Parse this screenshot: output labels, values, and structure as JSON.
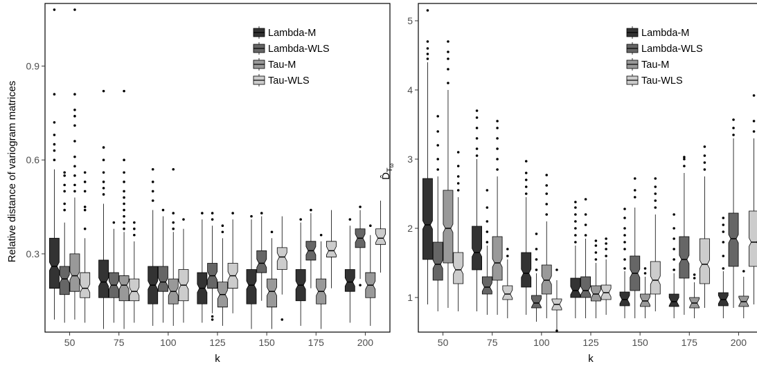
{
  "colors": {
    "Lambda-M": "#333333",
    "Lambda-WLS": "#666666",
    "Tau-M": "#999999",
    "Tau-WLS": "#cccccc",
    "outline": "#000000",
    "outlier": "#000000"
  },
  "chart_data": [
    {
      "type": "boxplot",
      "notched": true,
      "categories": [
        "50",
        "75",
        "100",
        "125",
        "150",
        "175",
        "200"
      ],
      "xlabel": "k",
      "ylabel": "Relative distance of variogram matrices",
      "ylim": [
        0.05,
        1.1
      ],
      "yticks": [
        0.3,
        0.6,
        0.9
      ],
      "yticklabels": [
        "0.3",
        "0.6",
        "0.9"
      ],
      "legend": {
        "position": "top-right",
        "entries": [
          "Lambda-M",
          "Lambda-WLS",
          "Tau-M",
          "Tau-WLS"
        ]
      },
      "series": [
        {
          "name": "Lambda-M",
          "boxes": [
            {
              "lw": 0.09,
              "q1": 0.19,
              "med": 0.26,
              "q3": 0.35,
              "uw": 0.57,
              "out": [
                0.6,
                0.63,
                0.65,
                0.68,
                0.72,
                0.81,
                1.08
              ]
            },
            {
              "lw": 0.06,
              "q1": 0.16,
              "med": 0.21,
              "q3": 0.28,
              "uw": 0.46,
              "out": [
                0.49,
                0.51,
                0.53,
                0.56,
                0.6,
                0.64,
                0.82
              ]
            },
            {
              "lw": 0.07,
              "q1": 0.14,
              "med": 0.2,
              "q3": 0.26,
              "uw": 0.44,
              "out": [
                0.47,
                0.5,
                0.53,
                0.57
              ]
            },
            {
              "lw": 0.08,
              "q1": 0.14,
              "med": 0.19,
              "q3": 0.24,
              "uw": 0.41,
              "out": [
                0.43
              ]
            },
            {
              "lw": 0.06,
              "q1": 0.14,
              "med": 0.2,
              "q3": 0.25,
              "uw": 0.41,
              "out": [
                0.42
              ]
            },
            {
              "lw": 0.07,
              "q1": 0.15,
              "med": 0.2,
              "q3": 0.25,
              "uw": 0.4,
              "out": [
                0.41
              ]
            },
            {
              "lw": 0.08,
              "q1": 0.18,
              "med": 0.21,
              "q3": 0.25,
              "uw": 0.39,
              "out": [
                0.41
              ]
            }
          ]
        },
        {
          "name": "Lambda-WLS",
          "boxes": [
            {
              "lw": 0.08,
              "q1": 0.17,
              "med": 0.22,
              "q3": 0.26,
              "uw": 0.4,
              "out": [
                0.44,
                0.46,
                0.5,
                0.52,
                0.55,
                0.56
              ]
            },
            {
              "lw": 0.08,
              "q1": 0.16,
              "med": 0.2,
              "q3": 0.24,
              "uw": 0.38,
              "out": [
                0.4
              ]
            },
            {
              "lw": 0.08,
              "q1": 0.18,
              "med": 0.21,
              "q3": 0.26,
              "uw": 0.42,
              "out": [
                0.44
              ]
            },
            {
              "lw": 0.11,
              "q1": 0.19,
              "med": 0.23,
              "q3": 0.27,
              "uw": 0.39,
              "out": [
                0.09,
                0.1,
                0.41,
                0.43
              ]
            },
            {
              "lw": 0.15,
              "q1": 0.24,
              "med": 0.27,
              "q3": 0.31,
              "uw": 0.42,
              "out": [
                0.43
              ]
            },
            {
              "lw": 0.19,
              "q1": 0.28,
              "med": 0.31,
              "q3": 0.34,
              "uw": 0.43,
              "out": [
                0.44
              ]
            },
            {
              "lw": 0.22,
              "q1": 0.32,
              "med": 0.35,
              "q3": 0.38,
              "uw": 0.44,
              "out": [
                0.2,
                0.45
              ]
            }
          ]
        },
        {
          "name": "Tau-M",
          "boxes": [
            {
              "lw": 0.09,
              "q1": 0.18,
              "med": 0.23,
              "q3": 0.3,
              "uw": 0.48,
              "out": [
                0.5,
                0.52,
                0.55,
                0.58,
                0.61,
                0.66,
                0.71,
                0.74,
                0.76,
                0.81,
                1.08
              ]
            },
            {
              "lw": 0.06,
              "q1": 0.15,
              "med": 0.2,
              "q3": 0.23,
              "uw": 0.37,
              "out": [
                0.38,
                0.4,
                0.42,
                0.44,
                0.46,
                0.48,
                0.5,
                0.53,
                0.56,
                0.6,
                0.82
              ]
            },
            {
              "lw": 0.07,
              "q1": 0.14,
              "med": 0.18,
              "q3": 0.22,
              "uw": 0.37,
              "out": [
                0.38,
                0.4,
                0.43,
                0.57
              ]
            },
            {
              "lw": 0.07,
              "q1": 0.13,
              "med": 0.17,
              "q3": 0.21,
              "uw": 0.35,
              "out": [
                0.37,
                0.39
              ]
            },
            {
              "lw": 0.06,
              "q1": 0.13,
              "med": 0.18,
              "q3": 0.22,
              "uw": 0.35,
              "out": [
                0.37
              ]
            },
            {
              "lw": 0.06,
              "q1": 0.14,
              "med": 0.18,
              "q3": 0.22,
              "uw": 0.34,
              "out": [
                0.36
              ]
            },
            {
              "lw": 0.07,
              "q1": 0.16,
              "med": 0.2,
              "q3": 0.24,
              "uw": 0.36,
              "out": [
                0.39
              ]
            }
          ]
        },
        {
          "name": "Tau-WLS",
          "boxes": [
            {
              "lw": 0.08,
              "q1": 0.16,
              "med": 0.19,
              "q3": 0.24,
              "uw": 0.35,
              "out": [
                0.38,
                0.44,
                0.45,
                0.5,
                0.53,
                0.56
              ]
            },
            {
              "lw": 0.08,
              "q1": 0.15,
              "med": 0.18,
              "q3": 0.22,
              "uw": 0.34,
              "out": [
                0.36,
                0.38,
                0.4
              ]
            },
            {
              "lw": 0.08,
              "q1": 0.15,
              "med": 0.2,
              "q3": 0.25,
              "uw": 0.38,
              "out": [
                0.41
              ]
            },
            {
              "lw": 0.11,
              "q1": 0.19,
              "med": 0.23,
              "q3": 0.27,
              "uw": 0.41,
              "out": [
                0.43
              ]
            },
            {
              "lw": 0.17,
              "q1": 0.25,
              "med": 0.29,
              "q3": 0.32,
              "uw": 0.42,
              "out": [
                0.09
              ]
            },
            {
              "lw": 0.19,
              "q1": 0.29,
              "med": 0.31,
              "q3": 0.34,
              "uw": 0.44,
              "out": []
            },
            {
              "lw": 0.24,
              "q1": 0.33,
              "med": 0.35,
              "q3": 0.38,
              "uw": 0.47,
              "out": []
            }
          ]
        }
      ]
    },
    {
      "type": "boxplot",
      "notched": true,
      "categories": [
        "50",
        "75",
        "100",
        "125",
        "150",
        "175",
        "200"
      ],
      "xlabel": "k",
      "ylabel": "D̂",
      "ylabel_subscript": "T",
      "ylabel_subsubscript": "ω",
      "ylim": [
        0.5,
        5.25
      ],
      "yticks": [
        1,
        2,
        3,
        4,
        5
      ],
      "yticklabels": [
        "1",
        "2",
        "3",
        "4",
        "5"
      ],
      "legend": {
        "position": "top-right",
        "entries": [
          "Lambda-M",
          "Lambda-WLS",
          "Tau-M",
          "Tau-WLS"
        ]
      },
      "series": [
        {
          "name": "Lambda-M",
          "boxes": [
            {
              "lw": 0.9,
              "q1": 1.55,
              "med": 2.05,
              "q3": 2.72,
              "uw": 4.4,
              "out": [
                4.45,
                4.52,
                4.6,
                4.7,
                5.15
              ]
            },
            {
              "lw": 0.8,
              "q1": 1.4,
              "med": 1.65,
              "q3": 2.03,
              "uw": 3.0,
              "out": [
                3.05,
                3.15,
                3.3,
                3.45,
                3.6,
                3.7
              ]
            },
            {
              "lw": 0.75,
              "q1": 1.15,
              "med": 1.35,
              "q3": 1.65,
              "uw": 2.45,
              "out": [
                2.5,
                2.6,
                2.7,
                2.8,
                2.97
              ]
            },
            {
              "lw": 0.7,
              "q1": 1.0,
              "med": 1.1,
              "q3": 1.28,
              "uw": 1.75,
              "out": [
                1.8,
                1.9,
                2.0,
                2.1,
                2.2,
                2.3,
                2.38
              ]
            },
            {
              "lw": 0.7,
              "q1": 0.88,
              "med": 0.97,
              "q3": 1.08,
              "uw": 1.38,
              "out": [
                1.42,
                1.55,
                1.7,
                1.8,
                1.9,
                2.0,
                2.15,
                2.28
              ]
            },
            {
              "lw": 0.7,
              "q1": 0.87,
              "med": 0.94,
              "q3": 1.05,
              "uw": 1.35,
              "out": [
                1.4,
                1.55,
                1.7,
                1.85,
                2.0,
                2.2
              ]
            },
            {
              "lw": 0.7,
              "q1": 0.88,
              "med": 0.97,
              "q3": 1.07,
              "uw": 1.38,
              "out": [
                1.42,
                1.6,
                1.8,
                1.95,
                2.05,
                2.15
              ]
            }
          ]
        },
        {
          "name": "Lambda-WLS",
          "boxes": [
            {
              "lw": 0.8,
              "q1": 1.25,
              "med": 1.48,
              "q3": 1.8,
              "uw": 2.75,
              "out": [
                2.85,
                3.0,
                3.2,
                3.4,
                3.62
              ]
            },
            {
              "lw": 0.75,
              "q1": 1.05,
              "med": 1.15,
              "q3": 1.3,
              "uw": 1.75,
              "out": [
                1.8,
                1.95,
                2.1,
                2.3,
                2.55
              ]
            },
            {
              "lw": 0.65,
              "q1": 0.85,
              "med": 0.92,
              "q3": 1.03,
              "uw": 1.35,
              "out": [
                1.4,
                1.55,
                1.7,
                1.92
              ]
            },
            {
              "lw": 0.7,
              "q1": 1.0,
              "med": 1.1,
              "q3": 1.3,
              "uw": 1.85,
              "out": [
                1.9,
                2.05,
                2.2,
                2.42
              ]
            },
            {
              "lw": 0.7,
              "q1": 1.1,
              "med": 1.35,
              "q3": 1.6,
              "uw": 2.3,
              "out": [
                2.45,
                2.55,
                2.72
              ]
            },
            {
              "lw": 0.75,
              "q1": 1.28,
              "med": 1.55,
              "q3": 1.88,
              "uw": 2.8,
              "out": [
                2.9,
                3.0,
                3.03
              ]
            },
            {
              "lw": 0.85,
              "q1": 1.45,
              "med": 1.85,
              "q3": 2.22,
              "uw": 3.3,
              "out": [
                3.35,
                3.45,
                3.57
              ]
            }
          ]
        },
        {
          "name": "Tau-M",
          "boxes": [
            {
              "lw": 0.85,
              "q1": 1.5,
              "med": 2.0,
              "q3": 2.55,
              "uw": 4.0,
              "out": [
                4.1,
                4.3,
                4.45,
                4.55,
                4.7
              ]
            },
            {
              "lw": 0.75,
              "q1": 1.25,
              "med": 1.5,
              "q3": 1.88,
              "uw": 2.75,
              "out": [
                2.85,
                3.0,
                3.15,
                3.3,
                3.45,
                3.55
              ]
            },
            {
              "lw": 0.7,
              "q1": 1.05,
              "med": 1.25,
              "q3": 1.47,
              "uw": 2.1,
              "out": [
                2.2,
                2.35,
                2.5,
                2.62,
                2.77
              ]
            },
            {
              "lw": 0.7,
              "q1": 0.95,
              "med": 1.05,
              "q3": 1.17,
              "uw": 1.5,
              "out": [
                1.55,
                1.65,
                1.75,
                1.82
              ]
            },
            {
              "lw": 0.7,
              "q1": 0.87,
              "med": 0.95,
              "q3": 1.05,
              "uw": 1.3,
              "out": [
                1.35,
                1.42
              ]
            },
            {
              "lw": 0.7,
              "q1": 0.85,
              "med": 0.92,
              "q3": 1.0,
              "uw": 1.22,
              "out": [
                1.28,
                1.33
              ]
            },
            {
              "lw": 0.7,
              "q1": 0.87,
              "med": 0.94,
              "q3": 1.02,
              "uw": 1.3,
              "out": [
                1.38
              ]
            }
          ]
        },
        {
          "name": "Tau-WLS",
          "boxes": [
            {
              "lw": 0.8,
              "q1": 1.2,
              "med": 1.4,
              "q3": 1.65,
              "uw": 2.45,
              "out": [
                2.55,
                2.65,
                2.75,
                2.9,
                3.1
              ]
            },
            {
              "lw": 0.7,
              "q1": 0.97,
              "med": 1.05,
              "q3": 1.17,
              "uw": 1.55,
              "out": [
                1.6,
                1.7
              ]
            },
            {
              "lw": 0.5,
              "q1": 0.82,
              "med": 0.9,
              "q3": 0.98,
              "uw": 1.25,
              "out": [
                1.4,
                0.52
              ]
            },
            {
              "lw": 0.75,
              "q1": 0.97,
              "med": 1.07,
              "q3": 1.18,
              "uw": 1.55,
              "out": [
                1.6,
                1.7,
                1.78,
                1.85
              ]
            },
            {
              "lw": 0.8,
              "q1": 1.05,
              "med": 1.25,
              "q3": 1.52,
              "uw": 2.2,
              "out": [
                2.3,
                2.4,
                2.5,
                2.6,
                2.72
              ]
            },
            {
              "lw": 0.85,
              "q1": 1.2,
              "med": 1.48,
              "q3": 1.85,
              "uw": 2.75,
              "out": [
                2.85,
                2.95,
                3.05,
                3.18
              ]
            },
            {
              "lw": 0.9,
              "q1": 1.45,
              "med": 1.8,
              "q3": 2.25,
              "uw": 3.3,
              "out": [
                3.4,
                3.55,
                3.92
              ]
            }
          ]
        }
      ]
    }
  ]
}
